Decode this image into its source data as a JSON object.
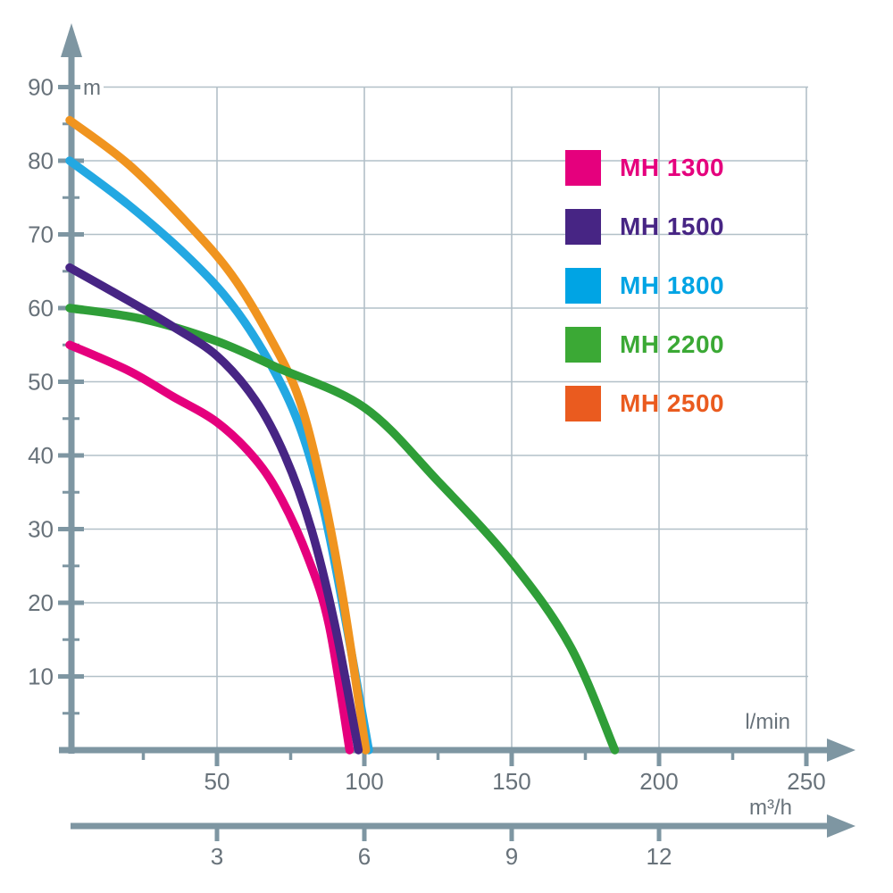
{
  "chart_data": {
    "type": "line",
    "grid": true,
    "legend_position": "upper right",
    "y_axis": {
      "unit": "m",
      "ticks": [
        10,
        20,
        30,
        40,
        50,
        60,
        70,
        80,
        90
      ],
      "minor_ticks": [
        5,
        15,
        25,
        35,
        45,
        55,
        65,
        75,
        85
      ],
      "range": [
        0,
        95
      ]
    },
    "x_axis": {
      "unit": "l/min",
      "ticks": [
        50,
        100,
        150,
        200,
        250
      ],
      "minor_ticks": [
        25,
        75,
        125,
        175,
        225
      ],
      "range": [
        0,
        265
      ]
    },
    "x_axis_secondary": {
      "unit": "m³/h",
      "ticks": [
        3,
        6,
        9,
        12
      ],
      "liters_per_unit": 16.6667
    },
    "series": [
      {
        "name": "MH 1300",
        "color": "#E5007D",
        "legend_color": "#E5007D",
        "points": [
          [
            0,
            55
          ],
          [
            20,
            51.5
          ],
          [
            35,
            48
          ],
          [
            50,
            44.5
          ],
          [
            63,
            39.5
          ],
          [
            72,
            34
          ],
          [
            81,
            26
          ],
          [
            88,
            17
          ],
          [
            95,
            0
          ]
        ]
      },
      {
        "name": "MH 1500",
        "color": "#472584",
        "legend_color": "#472584",
        "points": [
          [
            0,
            65.5
          ],
          [
            20,
            61
          ],
          [
            35,
            57.5
          ],
          [
            50,
            53.5
          ],
          [
            63,
            47.5
          ],
          [
            73,
            40
          ],
          [
            82,
            30
          ],
          [
            90,
            17
          ],
          [
            98,
            0
          ]
        ]
      },
      {
        "name": "MH 1800",
        "color": "#23A8E2",
        "legend_color": "#00A4E4",
        "points": [
          [
            0,
            80
          ],
          [
            20,
            74
          ],
          [
            40,
            67
          ],
          [
            55,
            60.5
          ],
          [
            68,
            52.5
          ],
          [
            78,
            44
          ],
          [
            86,
            33
          ],
          [
            93,
            19
          ],
          [
            101.5,
            0
          ]
        ]
      },
      {
        "name": "MH 2200",
        "color": "#2F9E38",
        "legend_color": "#3BA935",
        "points": [
          [
            0,
            60
          ],
          [
            25,
            58.5
          ],
          [
            50,
            55.5
          ],
          [
            70,
            52
          ],
          [
            100,
            46.5
          ],
          [
            125,
            36.5
          ],
          [
            150,
            25.5
          ],
          [
            170,
            14
          ],
          [
            185,
            0
          ]
        ]
      },
      {
        "name": "MH 2500",
        "color": "#F0941F",
        "legend_color": "#EA5B1F",
        "points": [
          [
            0,
            85.5
          ],
          [
            20,
            79.5
          ],
          [
            40,
            71.5
          ],
          [
            55,
            64.5
          ],
          [
            68,
            56
          ],
          [
            78,
            47.5
          ],
          [
            86,
            35
          ],
          [
            93,
            20
          ],
          [
            100.5,
            0
          ]
        ]
      }
    ],
    "styles": {
      "axis_color": "#7E96A2",
      "grid_color": "#B2C0C8",
      "tick_label_color": "#68727A",
      "background": "#FFFFFF"
    }
  }
}
